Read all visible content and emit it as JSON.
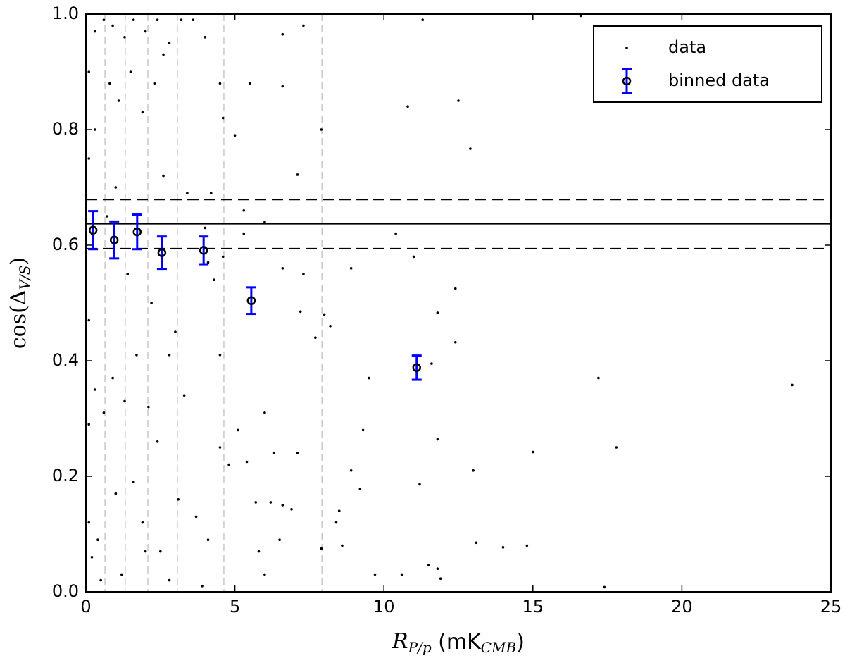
{
  "chart_data": {
    "type": "scatter",
    "xlabel_parts": [
      "R",
      "P/p",
      " (mK",
      "CMB",
      ")"
    ],
    "ylabel_parts": [
      "cos(Δ",
      "V/S",
      ")"
    ],
    "xlim": [
      0,
      25
    ],
    "ylim": [
      0,
      1
    ],
    "xticks": [
      0,
      5,
      10,
      15,
      20,
      25
    ],
    "yticks": [
      {
        "value": 0,
        "label": "0.0"
      },
      0.2,
      0.4,
      0.6,
      0.8,
      {
        "value": 1,
        "label": "1.0"
      }
    ],
    "legend": "upper right",
    "series": [
      {
        "name": "data",
        "color": "#000000",
        "x": [
          16.6,
          11.3,
          10.8,
          12.5,
          12.9,
          7.1,
          6.6,
          6.6,
          7.3,
          4.6,
          4.5,
          5.5,
          5.0,
          4.2,
          5.3,
          5.3,
          6.0,
          4.1,
          4.6,
          4.3,
          7.3,
          6.6,
          8.9,
          10.4,
          11.0,
          11.6,
          12.4,
          12.4,
          11.8,
          9.5,
          8.0,
          8.2,
          7.7,
          7.2,
          17.2,
          23.7,
          17.8,
          15.0,
          13.0,
          11.2,
          11.8,
          9.3,
          8.9,
          9.2,
          8.5,
          8.4,
          8.6,
          9.7,
          10.6,
          11.5,
          11.8,
          11.9,
          13.1,
          14.0,
          14.8,
          17.4,
          7.1,
          6.5,
          6.0,
          5.8,
          5.7,
          6.2,
          6.6,
          6.9,
          5.4,
          6.0,
          6.3,
          5.1,
          4.5,
          4.8,
          3.7,
          4.1,
          3.9,
          2.8,
          2.5,
          1.9,
          1.2,
          0.5,
          0.1,
          0.2,
          0.4,
          0.1,
          0.3,
          0.1,
          0.2,
          0.1,
          0.3,
          0.1,
          0.3,
          0.6,
          0.9,
          1.3,
          1.6,
          2.0,
          2.4,
          2.8,
          3.2,
          3.6,
          4.0,
          0.8,
          1.5,
          2.3,
          2.6,
          1.1,
          1.9,
          2.6,
          3.4,
          1.0,
          0.7,
          1.4,
          2.2,
          3.0,
          2.8,
          1.7,
          0.9,
          1.3,
          2.1,
          3.3,
          2.4,
          1.6,
          0.6,
          1.0,
          2.0,
          3.1,
          7.9,
          7.9,
          4.5,
          4.0
        ],
        "y": [
          0.997,
          0.99,
          0.84,
          0.85,
          0.767,
          0.722,
          0.875,
          0.965,
          0.98,
          0.82,
          0.88,
          0.88,
          0.79,
          0.69,
          0.66,
          0.62,
          0.64,
          0.57,
          0.58,
          0.54,
          0.55,
          0.56,
          0.56,
          0.62,
          0.58,
          0.395,
          0.525,
          0.432,
          0.483,
          0.37,
          0.48,
          0.46,
          0.44,
          0.485,
          0.37,
          0.358,
          0.25,
          0.242,
          0.21,
          0.186,
          0.264,
          0.28,
          0.21,
          0.178,
          0.14,
          0.12,
          0.08,
          0.03,
          0.03,
          0.046,
          0.04,
          0.023,
          0.085,
          0.077,
          0.08,
          0.008,
          0.24,
          0.09,
          0.03,
          0.07,
          0.155,
          0.155,
          0.15,
          0.143,
          0.225,
          0.31,
          0.24,
          0.28,
          0.25,
          0.22,
          0.13,
          0.09,
          0.01,
          0.02,
          0.07,
          0.12,
          0.03,
          0.02,
          0.12,
          0.06,
          0.09,
          0.29,
          0.35,
          0.47,
          0.62,
          0.75,
          0.8,
          0.9,
          0.97,
          0.99,
          0.98,
          0.96,
          0.99,
          0.97,
          0.99,
          0.95,
          0.99,
          0.99,
          0.96,
          0.88,
          0.9,
          0.88,
          0.93,
          0.85,
          0.83,
          0.72,
          0.69,
          0.7,
          0.65,
          0.55,
          0.5,
          0.45,
          0.41,
          0.41,
          0.37,
          0.33,
          0.32,
          0.34,
          0.26,
          0.19,
          0.31,
          0.17,
          0.07,
          0.16,
          0.075,
          0.8,
          0.41,
          0.63
        ]
      },
      {
        "name": "binned data",
        "color": "#0000ff",
        "x": [
          0.24,
          0.95,
          1.72,
          2.55,
          3.95,
          5.55,
          11.1
        ],
        "y": [
          0.626,
          0.609,
          0.623,
          0.587,
          0.591,
          0.504,
          0.388
        ],
        "err": [
          0.033,
          0.032,
          0.03,
          0.028,
          0.024,
          0.023,
          0.021
        ]
      }
    ],
    "hlines": [
      {
        "y": 0.637,
        "style": "solid"
      },
      {
        "y": 0.679,
        "style": "dashed"
      },
      {
        "y": 0.594,
        "style": "dashed"
      }
    ],
    "vlines": [
      0.64,
      1.32,
      2.08,
      3.07,
      4.63,
      7.92
    ]
  }
}
